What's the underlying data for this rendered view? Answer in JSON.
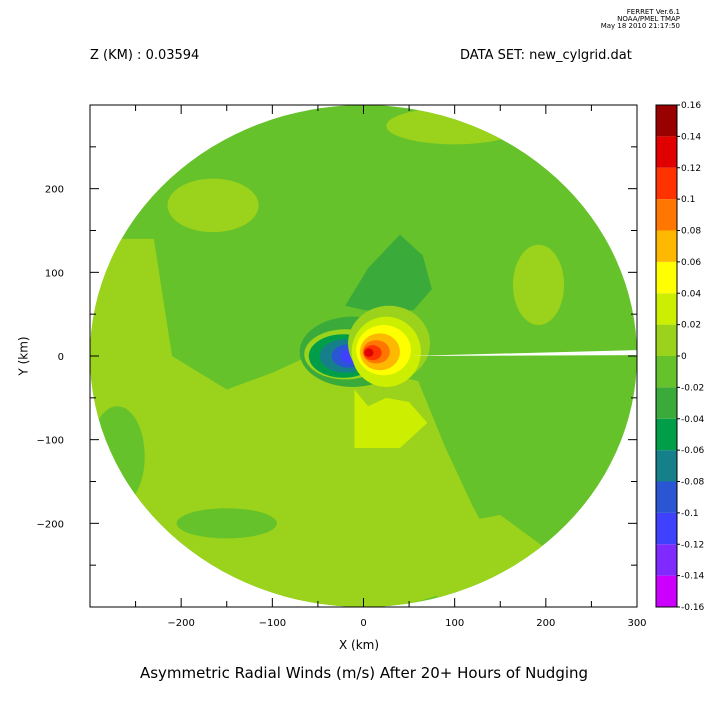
{
  "header": {
    "software": "FERRET  Ver.6.1",
    "org": "NOAA/PMEL TMAP",
    "timestamp": "May 18 2010 21:17:50",
    "z_label": "Z (KM) : 0.03594",
    "dataset_label": "DATA SET: new_cylgrid.dat"
  },
  "chart_data": {
    "type": "heatmap",
    "title": "Asymmetric Radial Winds (m/s) After 20+ Hours of Nudging",
    "xlabel": "X (km)",
    "ylabel": "Y (km)",
    "xlim": [
      -300,
      300
    ],
    "ylim": [
      -300,
      300
    ],
    "x_ticks": [
      -200,
      -100,
      0,
      100,
      200,
      300
    ],
    "y_ticks": [
      -200,
      -100,
      0,
      100,
      200
    ],
    "x_tick_labels": [
      "−200",
      "−100",
      "0",
      "100",
      "200",
      "300"
    ],
    "y_tick_labels": [
      "−200",
      "−100",
      "0",
      "100",
      "200"
    ],
    "domain_radius_km": 300,
    "colorbar": {
      "levels": [
        -0.16,
        -0.14,
        -0.12,
        -0.1,
        -0.08,
        -0.06,
        -0.04,
        -0.02,
        0,
        0.02,
        0.04,
        0.06,
        0.08,
        0.1,
        0.12,
        0.14,
        0.16
      ],
      "labels": [
        "-0.16",
        "-0.14",
        "-0.12",
        "-0.1",
        "-0.08",
        "-0.06",
        "-0.04",
        "-0.02",
        "0",
        "0.02",
        "0.04",
        "0.06",
        "0.08",
        "0.1",
        "0.12",
        "0.14",
        "0.16"
      ],
      "colors": [
        "#cc00ff",
        "#7f2aff",
        "#4040ff",
        "#2a56d4",
        "#16808a",
        "#009e48",
        "#3aaa3a",
        "#66c22a",
        "#9ad21c",
        "#ccee00",
        "#ffff00",
        "#ffb800",
        "#ff7700",
        "#ff3300",
        "#e00000",
        "#990000"
      ]
    },
    "background_level": -0.02,
    "features": [
      {
        "shape": "poly",
        "value": 0.01,
        "points": [
          [
            -300,
            -80
          ],
          [
            -300,
            140
          ],
          [
            -240,
            140
          ],
          [
            -230,
            140
          ],
          [
            -210,
            0
          ],
          [
            -150,
            -40
          ],
          [
            -100,
            -20
          ],
          [
            -60,
            0
          ],
          [
            -20,
            -20
          ],
          [
            20,
            -20
          ],
          [
            60,
            -30
          ],
          [
            90,
            -110
          ],
          [
            120,
            -180
          ],
          [
            160,
            -260
          ],
          [
            40,
            -300
          ],
          [
            -240,
            -300
          ]
        ]
      },
      {
        "shape": "poly",
        "value": 0.01,
        "points": [
          [
            50,
            -210
          ],
          [
            150,
            -190
          ],
          [
            200,
            -230
          ],
          [
            220,
            -280
          ],
          [
            90,
            -300
          ],
          [
            60,
            -260
          ]
        ]
      },
      {
        "shape": "ellipse",
        "value": 0.01,
        "cx": -165,
        "cy": 180,
        "rx": 50,
        "ry": 32
      },
      {
        "shape": "ellipse",
        "value": 0.01,
        "cx": 192,
        "cy": 85,
        "rx": 28,
        "ry": 48
      },
      {
        "shape": "ellipse",
        "value": 0.01,
        "cx": 100,
        "cy": 275,
        "rx": 75,
        "ry": 22
      },
      {
        "shape": "ellipse",
        "value": -0.02,
        "cx": -150,
        "cy": -200,
        "rx": 55,
        "ry": 18
      },
      {
        "shape": "ellipse",
        "value": -0.02,
        "cx": -270,
        "cy": -120,
        "rx": 30,
        "ry": 60
      },
      {
        "shape": "poly",
        "value": -0.03,
        "points": [
          [
            -20,
            60
          ],
          [
            5,
            105
          ],
          [
            40,
            145
          ],
          [
            65,
            120
          ],
          [
            75,
            80
          ],
          [
            55,
            55
          ],
          [
            25,
            52
          ],
          [
            0,
            55
          ]
        ]
      },
      {
        "shape": "ellipse",
        "value": -0.03,
        "cx": -12,
        "cy": 5,
        "rx": 58,
        "ry": 42
      },
      {
        "shape": "ellipse",
        "value": 0.01,
        "cx": -20,
        "cy": 2,
        "rx": 45,
        "ry": 30
      },
      {
        "shape": "ellipse",
        "value": -0.05,
        "cx": -22,
        "cy": 0,
        "rx": 38,
        "ry": 26
      },
      {
        "shape": "ellipse",
        "value": -0.07,
        "cx": -20,
        "cy": 0,
        "rx": 28,
        "ry": 20
      },
      {
        "shape": "ellipse",
        "value": -0.09,
        "cx": -17,
        "cy": 0,
        "rx": 18,
        "ry": 14
      },
      {
        "shape": "ellipse",
        "value": -0.11,
        "cx": -14,
        "cy": 0,
        "rx": 11,
        "ry": 9
      },
      {
        "shape": "poly",
        "value": 0.03,
        "points": [
          [
            -10,
            -40
          ],
          [
            5,
            -60
          ],
          [
            25,
            -50
          ],
          [
            50,
            -55
          ],
          [
            70,
            -80
          ],
          [
            40,
            -110
          ],
          [
            -10,
            -110
          ],
          [
            -10,
            -70
          ]
        ]
      },
      {
        "shape": "ellipse",
        "value": 0.01,
        "cx": 28,
        "cy": 15,
        "rx": 45,
        "ry": 45
      },
      {
        "shape": "ellipse",
        "value": 0.03,
        "cx": 25,
        "cy": 5,
        "rx": 38,
        "ry": 42
      },
      {
        "shape": "ellipse",
        "value": 0.05,
        "cx": 22,
        "cy": 7,
        "rx": 30,
        "ry": 30
      },
      {
        "shape": "ellipse",
        "value": 0.07,
        "cx": 18,
        "cy": 5,
        "rx": 22,
        "ry": 22
      },
      {
        "shape": "ellipse",
        "value": 0.09,
        "cx": 14,
        "cy": 5,
        "rx": 15,
        "ry": 14
      },
      {
        "shape": "ellipse",
        "value": 0.11,
        "cx": 10,
        "cy": 4,
        "rx": 10,
        "ry": 9
      },
      {
        "shape": "ellipse",
        "value": 0.13,
        "cx": 6,
        "cy": 4,
        "rx": 5,
        "ry": 5
      }
    ],
    "missing_wedge": {
      "from_x_km": 50,
      "to_x_km": 300,
      "y_inner_km": 0,
      "y_outer_top_km": 7,
      "y_outer_bottom_km": 1
    }
  }
}
